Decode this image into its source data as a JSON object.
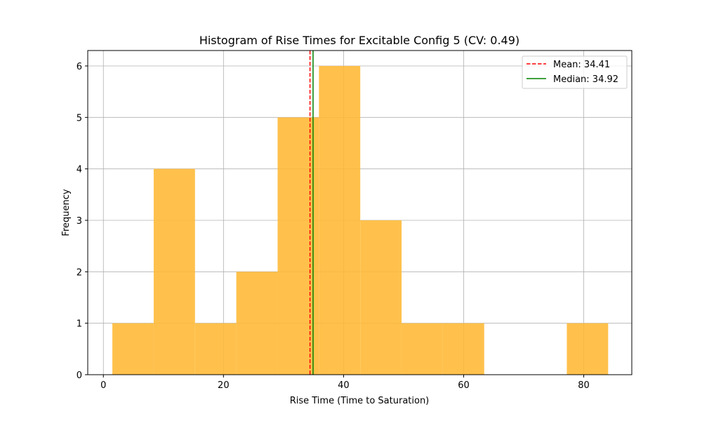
{
  "chart_data": {
    "type": "bar",
    "title": "Histogram of Rise Times for Excitable Config 5 (CV: 0.49)",
    "xlabel": "Rise Time (Time to Saturation)",
    "ylabel": "Frequency",
    "xlim": [
      -2.6,
      88.0
    ],
    "ylim": [
      0,
      6.3
    ],
    "xticks": [
      0,
      20,
      40,
      60,
      80
    ],
    "yticks": [
      0,
      1,
      2,
      3,
      4,
      5,
      6
    ],
    "grid": true,
    "legend_position": "top-right",
    "bar_color": "#FFB833",
    "bins": [
      {
        "x0": 1.5,
        "x1": 8.38,
        "count": 1
      },
      {
        "x0": 8.38,
        "x1": 15.26,
        "count": 4
      },
      {
        "x0": 15.26,
        "x1": 22.14,
        "count": 1
      },
      {
        "x0": 22.14,
        "x1": 29.02,
        "count": 2
      },
      {
        "x0": 29.02,
        "x1": 35.9,
        "count": 5
      },
      {
        "x0": 35.9,
        "x1": 42.78,
        "count": 6
      },
      {
        "x0": 42.78,
        "x1": 49.66,
        "count": 3
      },
      {
        "x0": 49.66,
        "x1": 56.54,
        "count": 1
      },
      {
        "x0": 56.54,
        "x1": 63.42,
        "count": 1
      },
      {
        "x0": 63.42,
        "x1": 70.3,
        "count": 0
      },
      {
        "x0": 70.3,
        "x1": 77.18,
        "count": 0
      },
      {
        "x0": 77.18,
        "x1": 84.06,
        "count": 1
      }
    ],
    "lines": [
      {
        "name": "Mean: 34.41",
        "x": 34.41,
        "color": "#ff0000",
        "style": "dashed"
      },
      {
        "name": "Median: 34.92",
        "x": 34.92,
        "color": "#008000",
        "style": "solid"
      }
    ]
  }
}
